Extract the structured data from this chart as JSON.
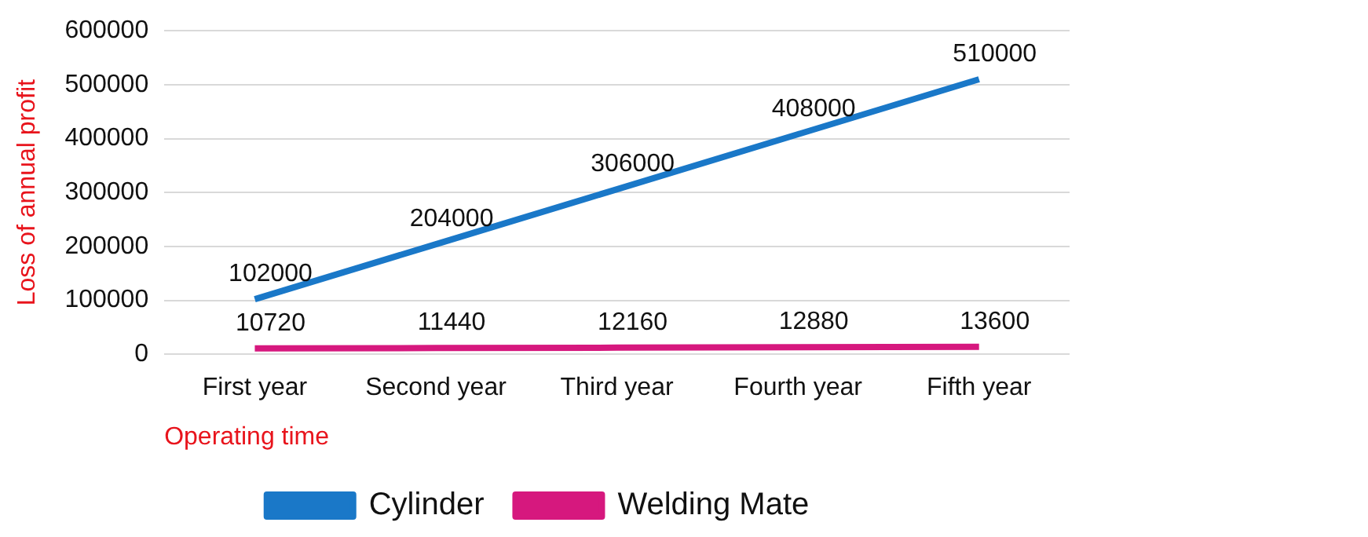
{
  "chart_data": {
    "type": "line",
    "xlabel": "Operating time",
    "ylabel": "Loss of annual profit",
    "categories": [
      "First year",
      "Second year",
      "Third year",
      "Fourth year",
      "Fifth year"
    ],
    "series": [
      {
        "name": "Cylinder",
        "color": "#1a78c8",
        "values": [
          102000,
          204000,
          306000,
          408000,
          510000
        ]
      },
      {
        "name": "Welding Mate",
        "color": "#d6187e",
        "values": [
          10720,
          11440,
          12160,
          12880,
          13600
        ]
      }
    ],
    "ylim": [
      0,
      600000
    ],
    "yticks": [
      0,
      100000,
      200000,
      300000,
      400000,
      500000,
      600000
    ],
    "grid": "y",
    "legend": "bottom",
    "marker": "none",
    "line_style": "solid",
    "data_labels": true
  }
}
